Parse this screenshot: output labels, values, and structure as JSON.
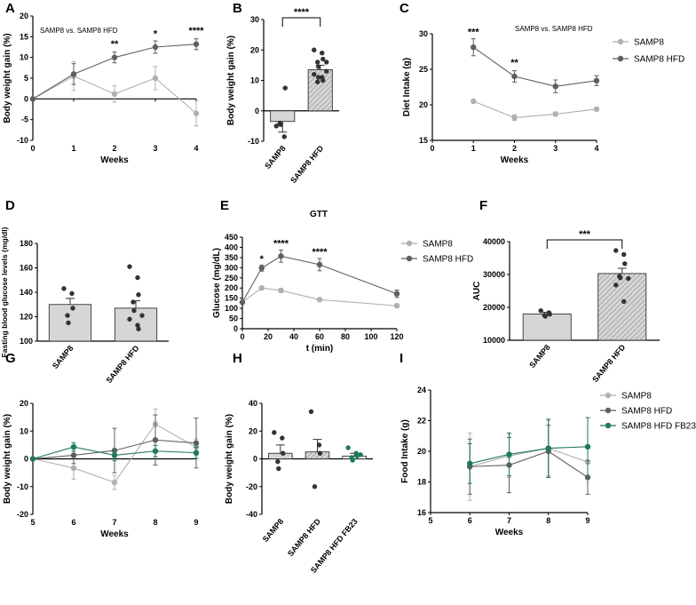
{
  "colors": {
    "light": "#b0b0b0",
    "dark": "#5f5f5f",
    "green": "#1e7a55",
    "bar_fill": "#d6d6d6",
    "hatch": "#8a8a8a"
  },
  "chart_data": [
    {
      "panel": "A",
      "type": "line",
      "note": "SAMP8 vs. SAMP8 HFD",
      "xlabel": "Weeks",
      "ylabel": "Body weight gain (%)",
      "xlim": [
        0,
        4
      ],
      "ylim": [
        -10,
        20
      ],
      "xticks": [
        0,
        1,
        2,
        3,
        4
      ],
      "yticks": [
        -10,
        -5,
        0,
        5,
        10,
        15,
        20
      ],
      "series": [
        {
          "name": "SAMP8",
          "color": "light",
          "x": [
            0,
            1,
            2,
            3,
            4
          ],
          "y": [
            0,
            5.5,
            1.2,
            5,
            -3.5
          ],
          "err": [
            0,
            3.5,
            2,
            2.8,
            3
          ]
        },
        {
          "name": "SAMP8 HFD",
          "color": "dark",
          "x": [
            0,
            1,
            2,
            3,
            4
          ],
          "y": [
            0,
            6,
            10,
            12.5,
            13.2
          ],
          "err": [
            0,
            2.5,
            1.3,
            1.5,
            1.3
          ]
        }
      ],
      "stars": [
        {
          "x": 2,
          "y": 12.5,
          "text": "**"
        },
        {
          "x": 3,
          "y": 15,
          "text": "*"
        },
        {
          "x": 4,
          "y": 15.7,
          "text": "****"
        }
      ]
    },
    {
      "panel": "B",
      "type": "bar",
      "ylabel": "Body weight gain (%)",
      "categories": [
        "SAMP8",
        "SAMP8 HFD"
      ],
      "values": [
        -3.5,
        13.5
      ],
      "err": [
        3.5,
        1.5
      ],
      "hatched": [
        false,
        true
      ],
      "ylim": [
        -10,
        30
      ],
      "yticks": [
        -10,
        0,
        10,
        20,
        30
      ],
      "points": [
        [
          -5,
          -8.5,
          7.5,
          -4,
          -4.5
        ],
        [
          20,
          19,
          17,
          16,
          14.5,
          13,
          12,
          11,
          10,
          9.5,
          11,
          16
        ]
      ],
      "sig": "****"
    },
    {
      "panel": "C",
      "type": "line",
      "note": "SAMP8 vs. SAMP8 HFD",
      "xlabel": "Weeks",
      "ylabel": "Diet Intake (g)",
      "xlim": [
        0,
        4
      ],
      "ylim": [
        15,
        30
      ],
      "xticks": [
        0,
        1,
        2,
        3,
        4
      ],
      "yticks": [
        15,
        20,
        25,
        30
      ],
      "series": [
        {
          "name": "SAMP8",
          "color": "light",
          "x": [
            1,
            2,
            3,
            4
          ],
          "y": [
            20.5,
            18.2,
            18.7,
            19.4
          ],
          "err": [
            0.2,
            0.4,
            0.3,
            0.2
          ]
        },
        {
          "name": "SAMP8 HFD",
          "color": "dark",
          "x": [
            1,
            2,
            3,
            4
          ],
          "y": [
            28.1,
            24,
            22.6,
            23.4
          ],
          "err": [
            1.2,
            0.8,
            0.9,
            0.7
          ]
        }
      ],
      "stars": [
        {
          "x": 1,
          "y": 29.8,
          "text": "***"
        },
        {
          "x": 2,
          "y": 25.5,
          "text": "**"
        }
      ]
    },
    {
      "panel": "D",
      "type": "bar",
      "ylabel": "Fasting blood glucose levels (mg/dl)",
      "categories": [
        "SAMP8",
        "SAMP8 HFD"
      ],
      "values": [
        130,
        127
      ],
      "err": [
        5,
        6
      ],
      "hatched": [
        false,
        false
      ],
      "ylim": [
        100,
        180
      ],
      "yticks": [
        100,
        120,
        140,
        160,
        180
      ],
      "points": [
        [
          143,
          139,
          127,
          121,
          115
        ],
        [
          161,
          152,
          138,
          132,
          125,
          121,
          118,
          113,
          110
        ]
      ]
    },
    {
      "panel": "E",
      "type": "line",
      "title": "GTT",
      "xlabel": "t (min)",
      "ylabel": "Glucose (mg/dL)",
      "xlim": [
        0,
        120
      ],
      "ylim": [
        0,
        450
      ],
      "xticks": [
        0,
        20,
        40,
        60,
        80,
        100,
        120
      ],
      "yticks": [
        0,
        50,
        100,
        150,
        200,
        250,
        300,
        350,
        400,
        450
      ],
      "series": [
        {
          "name": "SAMP8",
          "color": "light",
          "x": [
            0,
            15,
            30,
            60,
            120
          ],
          "y": [
            130,
            200,
            188,
            143,
            113
          ],
          "err": [
            0,
            6,
            10,
            8,
            8
          ]
        },
        {
          "name": "SAMP8 HFD",
          "color": "dark",
          "x": [
            0,
            15,
            30,
            60,
            120
          ],
          "y": [
            130,
            298,
            357,
            315,
            172
          ],
          "err": [
            0,
            15,
            30,
            30,
            18
          ]
        }
      ],
      "stars": [
        {
          "x": 15,
          "y": 327,
          "text": "*"
        },
        {
          "x": 30,
          "y": 405,
          "text": "****"
        },
        {
          "x": 60,
          "y": 362,
          "text": "****"
        }
      ]
    },
    {
      "panel": "F",
      "type": "bar",
      "ylabel": "AUC",
      "categories": [
        "SAMP8",
        "SAMP8 HFD"
      ],
      "values": [
        18000,
        30300
      ],
      "err": [
        500,
        1600
      ],
      "hatched": [
        false,
        true
      ],
      "ylim": [
        10000,
        40000
      ],
      "yticks": [
        10000,
        20000,
        30000,
        40000
      ],
      "points": [
        [
          19000,
          18400,
          17900,
          17600,
          17300
        ],
        [
          37300,
          36100,
          33300,
          29500,
          29000,
          28800,
          26800,
          21800
        ]
      ],
      "sig": "***"
    },
    {
      "panel": "G",
      "type": "line",
      "xlabel": "Weeks",
      "ylabel": "Body weight gain (%)",
      "xlim": [
        5,
        9
      ],
      "ylim": [
        -20,
        20
      ],
      "xticks": [
        5,
        6,
        7,
        8,
        9
      ],
      "yticks": [
        -20,
        -10,
        0,
        10,
        20
      ],
      "series": [
        {
          "name": "SAMP8",
          "color": "light",
          "x": [
            5,
            6,
            7,
            8,
            9
          ],
          "y": [
            0,
            -3.3,
            -8.5,
            12.5,
            4.2
          ],
          "err": [
            0,
            4,
            2.5,
            5.5,
            3
          ]
        },
        {
          "name": "SAMP8 HFD",
          "color": "dark",
          "x": [
            5,
            6,
            7,
            8,
            9
          ],
          "y": [
            0,
            1.3,
            3,
            6.8,
            5.7
          ],
          "err": [
            0,
            3,
            8,
            9,
            9
          ]
        },
        {
          "name": "SAMP8 HFD FB23",
          "color": "green",
          "x": [
            5,
            6,
            7,
            8,
            9
          ],
          "y": [
            0,
            4.3,
            1.3,
            2.8,
            2.2
          ],
          "err": [
            0,
            1.5,
            2,
            2,
            2
          ]
        }
      ]
    },
    {
      "panel": "H",
      "type": "bar",
      "ylabel": "Body weight gain (%)",
      "categories": [
        "SAMP8",
        "SAMP8 HFD",
        "SAMP8 HFD FB23"
      ],
      "values": [
        4,
        5,
        2
      ],
      "err": [
        6,
        9,
        2
      ],
      "hatched": [
        false,
        true,
        false
      ],
      "fill_colors": [
        "bar_fill",
        "bar_fill",
        "#ffffff"
      ],
      "point_colors": [
        "#333333",
        "#333333",
        "green"
      ],
      "ylim": [
        -40,
        40
      ],
      "yticks": [
        -40,
        -20,
        0,
        20,
        40
      ],
      "points": [
        [
          19,
          15,
          4,
          -2,
          -7
        ],
        [
          34,
          10,
          4,
          -20
        ],
        [
          8,
          4,
          2,
          1,
          -1,
          3
        ]
      ]
    },
    {
      "panel": "I",
      "type": "line",
      "xlabel": "Weeks",
      "ylabel": "Food Intake (g)",
      "xlim": [
        5,
        9
      ],
      "ylim": [
        16,
        24
      ],
      "xticks": [
        5,
        6,
        7,
        8,
        9
      ],
      "yticks": [
        16,
        18,
        20,
        22,
        24
      ],
      "series": [
        {
          "name": "SAMP8",
          "color": "light",
          "x": [
            6,
            7,
            8,
            9
          ],
          "y": [
            19.0,
            19.7,
            20.2,
            19.3
          ],
          "err": [
            2.2,
            1.4,
            1.8,
            1.0
          ]
        },
        {
          "name": "SAMP8 HFD",
          "color": "dark",
          "x": [
            6,
            7,
            8,
            9
          ],
          "y": [
            19.0,
            19.1,
            20.0,
            18.3
          ],
          "err": [
            1.8,
            1.8,
            1.7,
            1.1
          ]
        },
        {
          "name": "SAMP8 HFD FB23",
          "color": "green",
          "x": [
            6,
            7,
            8,
            9
          ],
          "y": [
            19.2,
            19.8,
            20.2,
            20.3
          ],
          "err": [
            1.3,
            1.4,
            1.9,
            1.9
          ]
        }
      ]
    }
  ],
  "legends": {
    "top": [
      "SAMP8",
      "SAMP8 HFD"
    ],
    "middle": [
      "SAMP8",
      "SAMP8 HFD"
    ],
    "bottom": [
      "SAMP8",
      "SAMP8 HFD",
      "SAMP8 HFD FB23"
    ]
  }
}
